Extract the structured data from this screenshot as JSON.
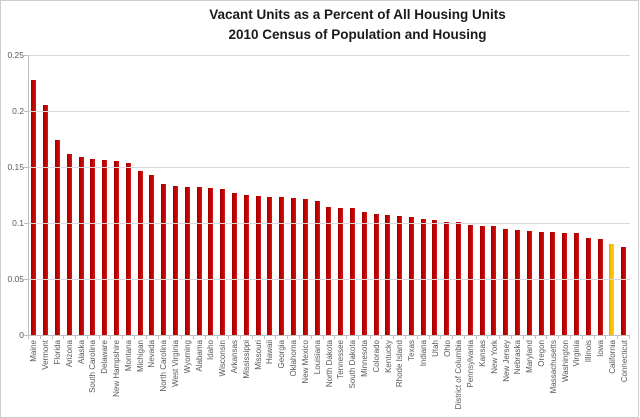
{
  "chart_data": {
    "type": "bar",
    "title_line1": "Vacant Units as a Percent of All Housing Units",
    "title_line2": "2010 Census of Population and Housing",
    "xlabel": "",
    "ylabel": "",
    "ylim": [
      0,
      0.25
    ],
    "ytick_labels": [
      "0.25",
      "0.2",
      "0.15",
      "0.1",
      "0.05",
      "0"
    ],
    "ytick_values": [
      0.25,
      0.2,
      0.15,
      0.1,
      0.05,
      0
    ],
    "grid": true,
    "legend": false,
    "bar_color": "#C00000",
    "highlight_color": "#FFC000",
    "highlight_category": "California",
    "categories": [
      "Maine",
      "Vermont",
      "Florida",
      "Arizona",
      "Alaska",
      "South Carolina",
      "Delaware",
      "New Hampshire",
      "Montana",
      "Michigan",
      "Nevada",
      "North Carolina",
      "West Virginia",
      "Wyoming",
      "Alabama",
      "Idaho",
      "Wisconsin",
      "Arkansas",
      "Mississippi",
      "Missouri",
      "Hawaii",
      "Georgia",
      "Oklahoma",
      "New Mexico",
      "Louisiana",
      "North Dakota",
      "Tennessee",
      "South Dakota",
      "Minnesota",
      "Colorado",
      "Kentucky",
      "Rhode Island",
      "Texas",
      "Indiana",
      "Utah",
      "Ohio",
      "District of Columbia",
      "Pennsylvania",
      "Kansas",
      "New York",
      "New Jersey",
      "Nebraska",
      "Maryland",
      "Oregon",
      "Massachusetts",
      "Washington",
      "Virginia",
      "Illinois",
      "Iowa",
      "California",
      "Connecticut"
    ],
    "values": [
      0.228,
      0.205,
      0.174,
      0.162,
      0.159,
      0.157,
      0.156,
      0.155,
      0.154,
      0.146,
      0.143,
      0.135,
      0.133,
      0.132,
      0.132,
      0.131,
      0.13,
      0.127,
      0.125,
      0.124,
      0.123,
      0.123,
      0.122,
      0.121,
      0.12,
      0.114,
      0.113,
      0.113,
      0.11,
      0.108,
      0.107,
      0.106,
      0.105,
      0.104,
      0.103,
      0.101,
      0.101,
      0.098,
      0.097,
      0.097,
      0.095,
      0.094,
      0.093,
      0.092,
      0.092,
      0.091,
      0.091,
      0.087,
      0.086,
      0.081,
      0.079
    ]
  }
}
